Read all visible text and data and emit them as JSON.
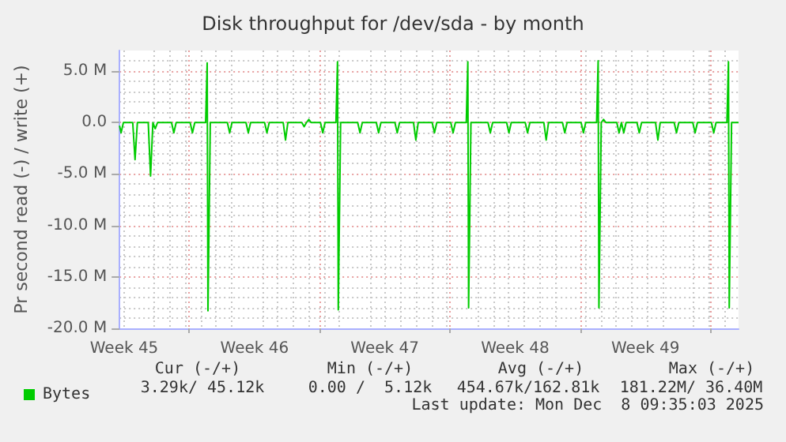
{
  "chart_data": {
    "type": "line",
    "title": "Disk throughput for /dev/sda - by month",
    "ylabel": "Pr second read (-) / write (+)",
    "xlim": [
      "2025-11-06T06:00",
      "2025-12-09T12:00"
    ],
    "xticks": [
      {
        "value": "2025-11-06T12:00",
        "label": "Week 45"
      },
      {
        "value": "2025-11-10",
        "label": null
      },
      {
        "value": "2025-11-13T12:00",
        "label": "Week 46"
      },
      {
        "value": "2025-11-17",
        "label": null
      },
      {
        "value": "2025-11-20T12:00",
        "label": "Week 47"
      },
      {
        "value": "2025-11-24",
        "label": null
      },
      {
        "value": "2025-11-27T12:00",
        "label": "Week 48"
      },
      {
        "value": "2025-12-01",
        "label": null
      },
      {
        "value": "2025-12-04T12:00",
        "label": "Week 49"
      },
      {
        "value": "2025-12-08",
        "label": null
      }
    ],
    "ylim": [
      -20,
      7
    ],
    "yticks": [
      {
        "value": -20,
        "label": "-20.0 M"
      },
      {
        "value": -15,
        "label": "-15.0 M"
      },
      {
        "value": -10,
        "label": "-10.0 M"
      },
      {
        "value": -5,
        "label": "-5.0 M"
      },
      {
        "value": 0,
        "label": "0.0"
      },
      {
        "value": 5,
        "label": "5.0 M"
      }
    ],
    "grid": true,
    "legend": "bottom",
    "marker": "none",
    "line_style": "solid",
    "series": [
      {
        "name": "Bytes",
        "color": "#00cc00",
        "x": [
          "2025-11-06T06:00",
          "2025-11-06T08:00",
          "2025-11-06T11:00",
          "2025-11-06T23:00",
          "2025-11-07T02:00",
          "2025-11-07T05:00",
          "2025-11-07T19:00",
          "2025-11-07T22:00",
          "2025-11-08T01:00",
          "2025-11-08T04:00",
          "2025-11-08T07:00",
          "2025-11-09T01:00",
          "2025-11-09T04:00",
          "2025-11-09T07:00",
          "2025-11-10T01:00",
          "2025-11-10T04:00",
          "2025-11-10T07:00",
          "2025-11-10T21:00",
          "2025-11-10T23:00",
          "2025-11-11T00:00",
          "2025-11-11T03:00",
          "2025-11-12T01:00",
          "2025-11-12T04:00",
          "2025-11-12T07:00",
          "2025-11-13T01:00",
          "2025-11-13T04:00",
          "2025-11-13T07:00",
          "2025-11-14T01:00",
          "2025-11-14T04:00",
          "2025-11-14T07:00",
          "2025-11-15T01:00",
          "2025-11-15T04:00",
          "2025-11-15T07:00",
          "2025-11-16T01:00",
          "2025-11-16T04:00",
          "2025-11-16T07:00",
          "2025-11-16T10:00",
          "2025-11-16T13:00",
          "2025-11-17T01:00",
          "2025-11-17T04:00",
          "2025-11-17T07:00",
          "2025-11-17T21:00",
          "2025-11-17T23:00",
          "2025-11-18T00:00",
          "2025-11-18T03:00",
          "2025-11-19T01:00",
          "2025-11-19T04:00",
          "2025-11-19T07:00",
          "2025-11-20T01:00",
          "2025-11-20T04:00",
          "2025-11-20T07:00",
          "2025-11-21T01:00",
          "2025-11-21T04:00",
          "2025-11-21T07:00",
          "2025-11-22T01:00",
          "2025-11-22T04:00",
          "2025-11-22T07:00",
          "2025-11-23T01:00",
          "2025-11-23T04:00",
          "2025-11-23T07:00",
          "2025-11-24T01:00",
          "2025-11-24T04:00",
          "2025-11-24T07:00",
          "2025-11-24T21:00",
          "2025-11-24T23:00",
          "2025-11-25T00:00",
          "2025-11-25T03:00",
          "2025-11-26T01:00",
          "2025-11-26T04:00",
          "2025-11-26T07:00",
          "2025-11-27T01:00",
          "2025-11-27T04:00",
          "2025-11-27T07:00",
          "2025-11-28T01:00",
          "2025-11-28T04:00",
          "2025-11-28T07:00",
          "2025-11-29T01:00",
          "2025-11-29T04:00",
          "2025-11-29T07:00",
          "2025-11-30T01:00",
          "2025-11-30T04:00",
          "2025-11-30T07:00",
          "2025-12-01T01:00",
          "2025-12-01T04:00",
          "2025-12-01T07:00",
          "2025-12-01T21:00",
          "2025-12-01T23:00",
          "2025-12-02T00:00",
          "2025-12-02T03:00",
          "2025-12-02T06:00",
          "2025-12-02T09:00",
          "2025-12-02T23:00",
          "2025-12-03T02:00",
          "2025-12-03T05:00",
          "2025-12-03T08:00",
          "2025-12-03T11:00",
          "2025-12-04T01:00",
          "2025-12-04T04:00",
          "2025-12-04T07:00",
          "2025-12-05T01:00",
          "2025-12-05T04:00",
          "2025-12-05T07:00",
          "2025-12-06T01:00",
          "2025-12-06T04:00",
          "2025-12-06T07:00",
          "2025-12-07T01:00",
          "2025-12-07T04:00",
          "2025-12-07T07:00",
          "2025-12-08T01:00",
          "2025-12-08T04:00",
          "2025-12-08T07:00",
          "2025-12-08T21:00",
          "2025-12-08T23:00",
          "2025-12-09T00:00",
          "2025-12-09T03:00",
          "2025-12-09T12:00"
        ],
        "values": [
          -0.3,
          -1.0,
          0,
          0,
          -3.6,
          0,
          0,
          -5.2,
          0,
          -0.6,
          0,
          0,
          -1.0,
          0,
          0,
          -1.0,
          0,
          0,
          5.8,
          -18.3,
          0,
          0,
          -1.0,
          0,
          0,
          -1.0,
          0,
          0,
          -1.0,
          0,
          0,
          -1.7,
          0,
          0,
          -0.4,
          0,
          0.3,
          0,
          0,
          -1.0,
          0,
          0,
          5.9,
          -18.2,
          0,
          0,
          -1.0,
          0,
          0,
          -1.0,
          0,
          0,
          -1.0,
          0,
          0,
          -1.7,
          0,
          0,
          -1.0,
          0,
          0,
          -1.0,
          0,
          0,
          5.9,
          -18.0,
          0,
          0,
          -1.0,
          0,
          0,
          -1.0,
          0,
          0,
          -1.0,
          0,
          0,
          -1.7,
          0,
          0,
          -1.0,
          0,
          0,
          -1.0,
          0,
          0,
          6.0,
          -18.0,
          0,
          0.3,
          0,
          0,
          -1.0,
          0,
          -1.0,
          0,
          0,
          -1.0,
          0,
          0,
          -1.7,
          0,
          0,
          -1.0,
          0,
          0,
          -1.0,
          0,
          0,
          -1.0,
          0,
          0,
          5.9,
          -18.0,
          0,
          0
        ]
      }
    ],
    "annotations": [
      "Cur (-/+)",
      "Min (-/+)",
      "Avg (-/+)",
      "Max (-/+)",
      "3.29k/ 45.12k",
      "0.00 /  5.12k",
      "454.67k/162.81k",
      "181.22M/ 36.40M",
      "Last update: Mon Dec  8 09:35:03 2025"
    ]
  }
}
